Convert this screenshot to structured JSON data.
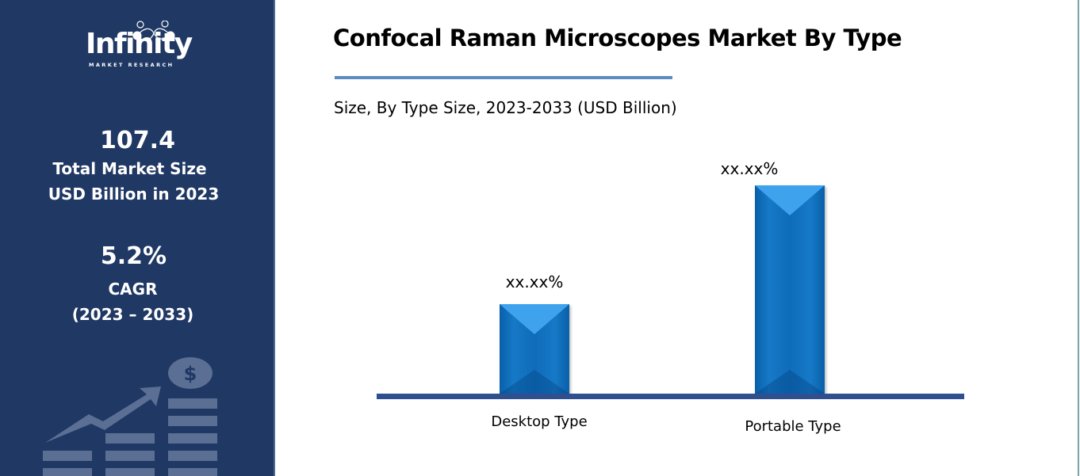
{
  "brand": {
    "name": "Infinity",
    "tagline": "MARKET RESEARCH"
  },
  "sidebar": {
    "market_size_value": "107.4",
    "market_size_label_1": "Total Market Size",
    "market_size_label_2": "USD Billion in 2023",
    "cagr_value": "5.2%",
    "cagr_label": "CAGR",
    "cagr_period": "(2023 – 2033)",
    "decoration_icon": "growth-chart-dollar-icon"
  },
  "colors": {
    "panel": "#203864",
    "bar": "#1272c0",
    "axis": "#2f4f8f",
    "title_rule": "#5b8bbf"
  },
  "chart_data": {
    "type": "bar",
    "title": "Confocal Raman Microscopes Market By Type",
    "subtitle": "Size, By Type Size, 2023-2033 (USD Billion)",
    "categories": [
      "Desktop Type",
      "Portable Type"
    ],
    "values": [
      113,
      263
    ],
    "data_labels": [
      "xx.xx%",
      "xx.xx%"
    ],
    "xlabel": "",
    "ylabel": "",
    "grid": false,
    "legend": "none",
    "note": "values are relative bar heights in pixels; actual data masked as xx.xx%"
  }
}
